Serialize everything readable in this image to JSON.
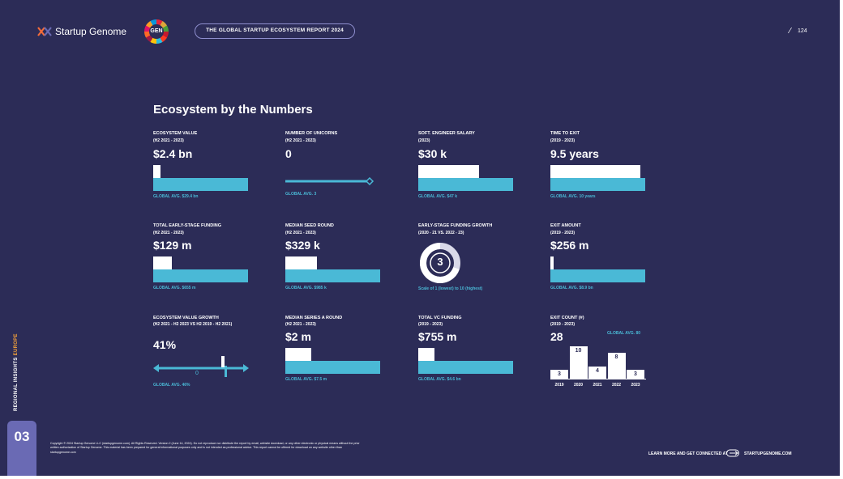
{
  "header": {
    "brand": "Startup Genome",
    "gen_badge": "GEN",
    "report_title": "THE GLOBAL STARTUP ECOSYSTEM REPORT 2024",
    "page_number": "124"
  },
  "title": "Ecosystem by the Numbers",
  "metrics": {
    "ecosystem_value": {
      "label": "ECOSYSTEM VALUE",
      "period": "(H2 2021 - 2023)",
      "value": "$2.4 bn",
      "avg": "GLOBAL AVG. $29.4 bn",
      "fraction": 0.08
    },
    "unicorns": {
      "label": "NUMBER OF UNICORNS",
      "period": "(H2 2021 - 2023)",
      "value": "0",
      "avg": "GLOBAL AVG. 3"
    },
    "engineer_salary": {
      "label": "SOFT. ENGINEER SALARY",
      "period": "(2023)",
      "value": "$30 k",
      "avg": "GLOBAL AVG. $47 k",
      "fraction": 0.64
    },
    "time_to_exit": {
      "label": "TIME TO EXIT",
      "period": "(2019 - 2023)",
      "value": "9.5 years",
      "avg": "GLOBAL AVG. 10 years",
      "fraction": 0.95
    },
    "early_funding": {
      "label": "TOTAL EARLY-STAGE FUNDING",
      "period": "(H2 2021 - 2023)",
      "value": "$129 m",
      "avg": "GLOBAL AVG. $655 m",
      "fraction": 0.2
    },
    "seed_round": {
      "label": "MEDIAN SEED ROUND",
      "period": "(H2 2021 - 2023)",
      "value": "$329 k",
      "avg": "GLOBAL AVG. $985 k",
      "fraction": 0.33
    },
    "funding_growth": {
      "label": "EARLY-STAGE FUNDING GROWTH",
      "period": "(2020 - 21 VS. 2022 - 23)",
      "value": "3",
      "scale": "Scale of 1 (lowest) to 10 (highest)"
    },
    "exit_amount": {
      "label": "EXIT AMOUNT",
      "period": "(2019 - 2023)",
      "value": "$256 m",
      "avg": "GLOBAL AVG. $8.9 bn",
      "fraction": 0.03
    },
    "value_growth": {
      "label": "ECOSYSTEM VALUE GROWTH",
      "period": "(H2 2021 - H2 2023 VS H2 2019 - H2 2021)",
      "value": "41%",
      "axis_zero": "0",
      "avg": "GLOBAL AVG. 46%"
    },
    "series_a": {
      "label": "MEDIAN SERIES A ROUND",
      "period": "(H2 2021 - 2023)",
      "value": "$2 m",
      "avg": "GLOBAL AVG. $7.5 m",
      "fraction": 0.27
    },
    "vc_funding": {
      "label": "TOTAL VC FUNDING",
      "period": "(2019 - 2023)",
      "value": "$755 m",
      "avg": "GLOBAL AVG. $4.6 bn",
      "fraction": 0.17
    },
    "exit_count": {
      "label": "EXIT COUNT (#)",
      "period": "(2019 - 2023)",
      "value": "28",
      "avg": "GLOBAL AVG. 80"
    }
  },
  "chart_data": {
    "type": "bar",
    "categories": [
      "2019",
      "2020",
      "2021",
      "2022",
      "2023"
    ],
    "values": [
      3,
      10,
      4,
      8,
      3
    ]
  },
  "sidebar": {
    "section": "REGIONAL INSIGHTS",
    "region": "EUROPE",
    "chapter": "03"
  },
  "footer": {
    "copyright": "Copyright © 2024 Startup Genome LLC (startupgenome.com). All Rights Reserved. Version 2 (June 14, 2024). Do not reproduce nor distribute the report by email, website download, or any other electronic or physical means without the prior written authorization of Startup Genome. This material has been prepared for general informational purposes only and is not intended as professional advice. This report cannot be offered for download on any website other than startupgenome.com",
    "cta": "LEARN MORE AND GET CONNECTED AT",
    "site": "STARTUPGENOME.COM"
  },
  "colors": {
    "background": "#2c2c57",
    "accent": "#4ab9d6",
    "bar": "#ffffff"
  }
}
